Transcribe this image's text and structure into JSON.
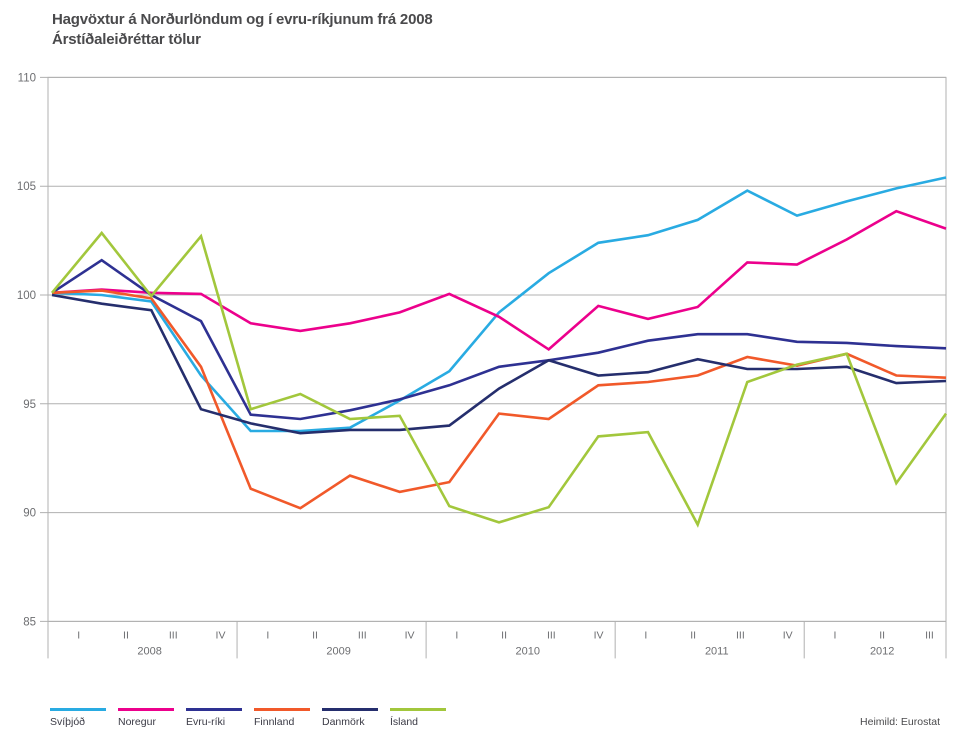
{
  "page": {
    "title_line1": "Hagvöxtur á Norðurlöndum og í evru-ríkjunum frá 2008",
    "title_line2": "Árstíðaleiðréttar tölur",
    "source": "Heimild: Eurostat"
  },
  "chart_data": {
    "type": "line",
    "title": "Hagvöxtur á Norðurlöndum og í evru-ríkjunum frá 2008",
    "subtitle": "Árstíðaleiðréttar tölur",
    "source": "Heimild: Eurostat",
    "ylim": [
      85,
      110
    ],
    "yticks": [
      85,
      90,
      95,
      100,
      105,
      110
    ],
    "grid": "horizontal",
    "legend_position": "bottom",
    "axis_color": "#b0b0b0",
    "tick_text_color": "#6d6e71",
    "x_years": [
      {
        "label": "2008",
        "quarters": [
          "I",
          "II",
          "III",
          "IV"
        ]
      },
      {
        "label": "2009",
        "quarters": [
          "I",
          "II",
          "III",
          "IV"
        ]
      },
      {
        "label": "2010",
        "quarters": [
          "I",
          "II",
          "III",
          "IV"
        ]
      },
      {
        "label": "2011",
        "quarters": [
          "I",
          "II",
          "III",
          "IV"
        ]
      },
      {
        "label": "2012",
        "quarters": [
          "I",
          "II",
          "III"
        ]
      }
    ],
    "series": [
      {
        "name": "Svíþjóð",
        "color": "#29abe2",
        "values": [
          100.1,
          100.0,
          99.7,
          96.3,
          93.75,
          93.75,
          93.9,
          95.15,
          96.5,
          99.2,
          101.0,
          102.4,
          102.75,
          103.45,
          104.8,
          103.65,
          104.3,
          104.9,
          105.4
        ]
      },
      {
        "name": "Noregur",
        "color": "#ec008c",
        "values": [
          100.1,
          100.25,
          100.1,
          100.05,
          98.7,
          98.35,
          98.7,
          99.2,
          100.05,
          99.0,
          97.5,
          99.5,
          98.9,
          99.45,
          101.5,
          101.4,
          102.55,
          103.85,
          103.05
        ]
      },
      {
        "name": "Evru-ríki",
        "color": "#2e3192",
        "values": [
          100.1,
          101.6,
          100.0,
          98.8,
          94.5,
          94.3,
          94.7,
          95.2,
          95.85,
          96.7,
          97.0,
          97.35,
          97.9,
          98.2,
          98.2,
          97.85,
          97.8,
          97.65,
          97.55
        ]
      },
      {
        "name": "Finnland",
        "color": "#f1592a",
        "values": [
          100.1,
          100.2,
          99.85,
          96.7,
          91.1,
          90.2,
          91.7,
          90.95,
          91.4,
          94.55,
          94.3,
          95.85,
          96.0,
          96.3,
          97.15,
          96.75,
          97.3,
          96.3,
          96.2
        ]
      },
      {
        "name": "Danmörk",
        "color": "#252e6d",
        "values": [
          100.0,
          99.6,
          99.3,
          94.75,
          94.1,
          93.65,
          93.8,
          93.8,
          94.0,
          95.7,
          97.0,
          96.3,
          96.45,
          97.05,
          96.6,
          96.6,
          96.7,
          95.95,
          96.05
        ]
      },
      {
        "name": "Ísland",
        "color": "#a2c73c",
        "values": [
          100.1,
          102.85,
          99.95,
          102.7,
          94.75,
          95.45,
          94.3,
          94.45,
          90.3,
          89.55,
          90.25,
          93.5,
          93.7,
          89.45,
          96.0,
          96.8,
          97.3,
          91.35,
          94.55
        ]
      }
    ]
  }
}
